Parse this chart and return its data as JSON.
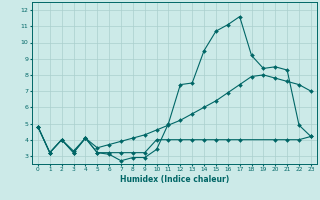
{
  "xlabel": "Humidex (Indice chaleur)",
  "bg_color": "#cceae8",
  "grid_color": "#aacfcd",
  "line_color": "#006666",
  "xlim": [
    -0.5,
    23.5
  ],
  "ylim": [
    2.5,
    12.5
  ],
  "xticks": [
    0,
    1,
    2,
    3,
    4,
    5,
    6,
    7,
    8,
    9,
    10,
    11,
    12,
    13,
    14,
    15,
    16,
    17,
    18,
    19,
    20,
    21,
    22,
    23
  ],
  "yticks": [
    3,
    4,
    5,
    6,
    7,
    8,
    9,
    10,
    11,
    12
  ],
  "line1_x": [
    0,
    1,
    2,
    3,
    4,
    5,
    6,
    7,
    8,
    9,
    10,
    11,
    12,
    13,
    14,
    15,
    16,
    17,
    18,
    19,
    20,
    21,
    22,
    23
  ],
  "line1_y": [
    4.8,
    3.2,
    4.0,
    3.2,
    4.1,
    3.2,
    3.1,
    2.7,
    2.9,
    2.9,
    3.4,
    5.0,
    7.4,
    7.5,
    9.5,
    10.7,
    11.1,
    11.6,
    9.2,
    8.4,
    8.5,
    8.3,
    4.9,
    4.2
  ],
  "line2_x": [
    0,
    1,
    2,
    3,
    4,
    5,
    6,
    7,
    8,
    9,
    10,
    11,
    12,
    13,
    14,
    15,
    16,
    17,
    18,
    19,
    20,
    21,
    22,
    23
  ],
  "line2_y": [
    4.8,
    3.2,
    4.0,
    3.3,
    4.1,
    3.5,
    3.7,
    3.9,
    4.1,
    4.3,
    4.6,
    4.9,
    5.2,
    5.6,
    6.0,
    6.4,
    6.9,
    7.4,
    7.9,
    8.0,
    7.8,
    7.6,
    7.4,
    7.0
  ],
  "line3_x": [
    0,
    1,
    2,
    3,
    4,
    5,
    6,
    7,
    8,
    9,
    10,
    11,
    12,
    13,
    14,
    15,
    16,
    17,
    20,
    21,
    22,
    23
  ],
  "line3_y": [
    4.8,
    3.2,
    4.0,
    3.2,
    4.1,
    3.2,
    3.2,
    3.2,
    3.2,
    3.2,
    4.0,
    4.0,
    4.0,
    4.0,
    4.0,
    4.0,
    4.0,
    4.0,
    4.0,
    4.0,
    4.0,
    4.2
  ]
}
